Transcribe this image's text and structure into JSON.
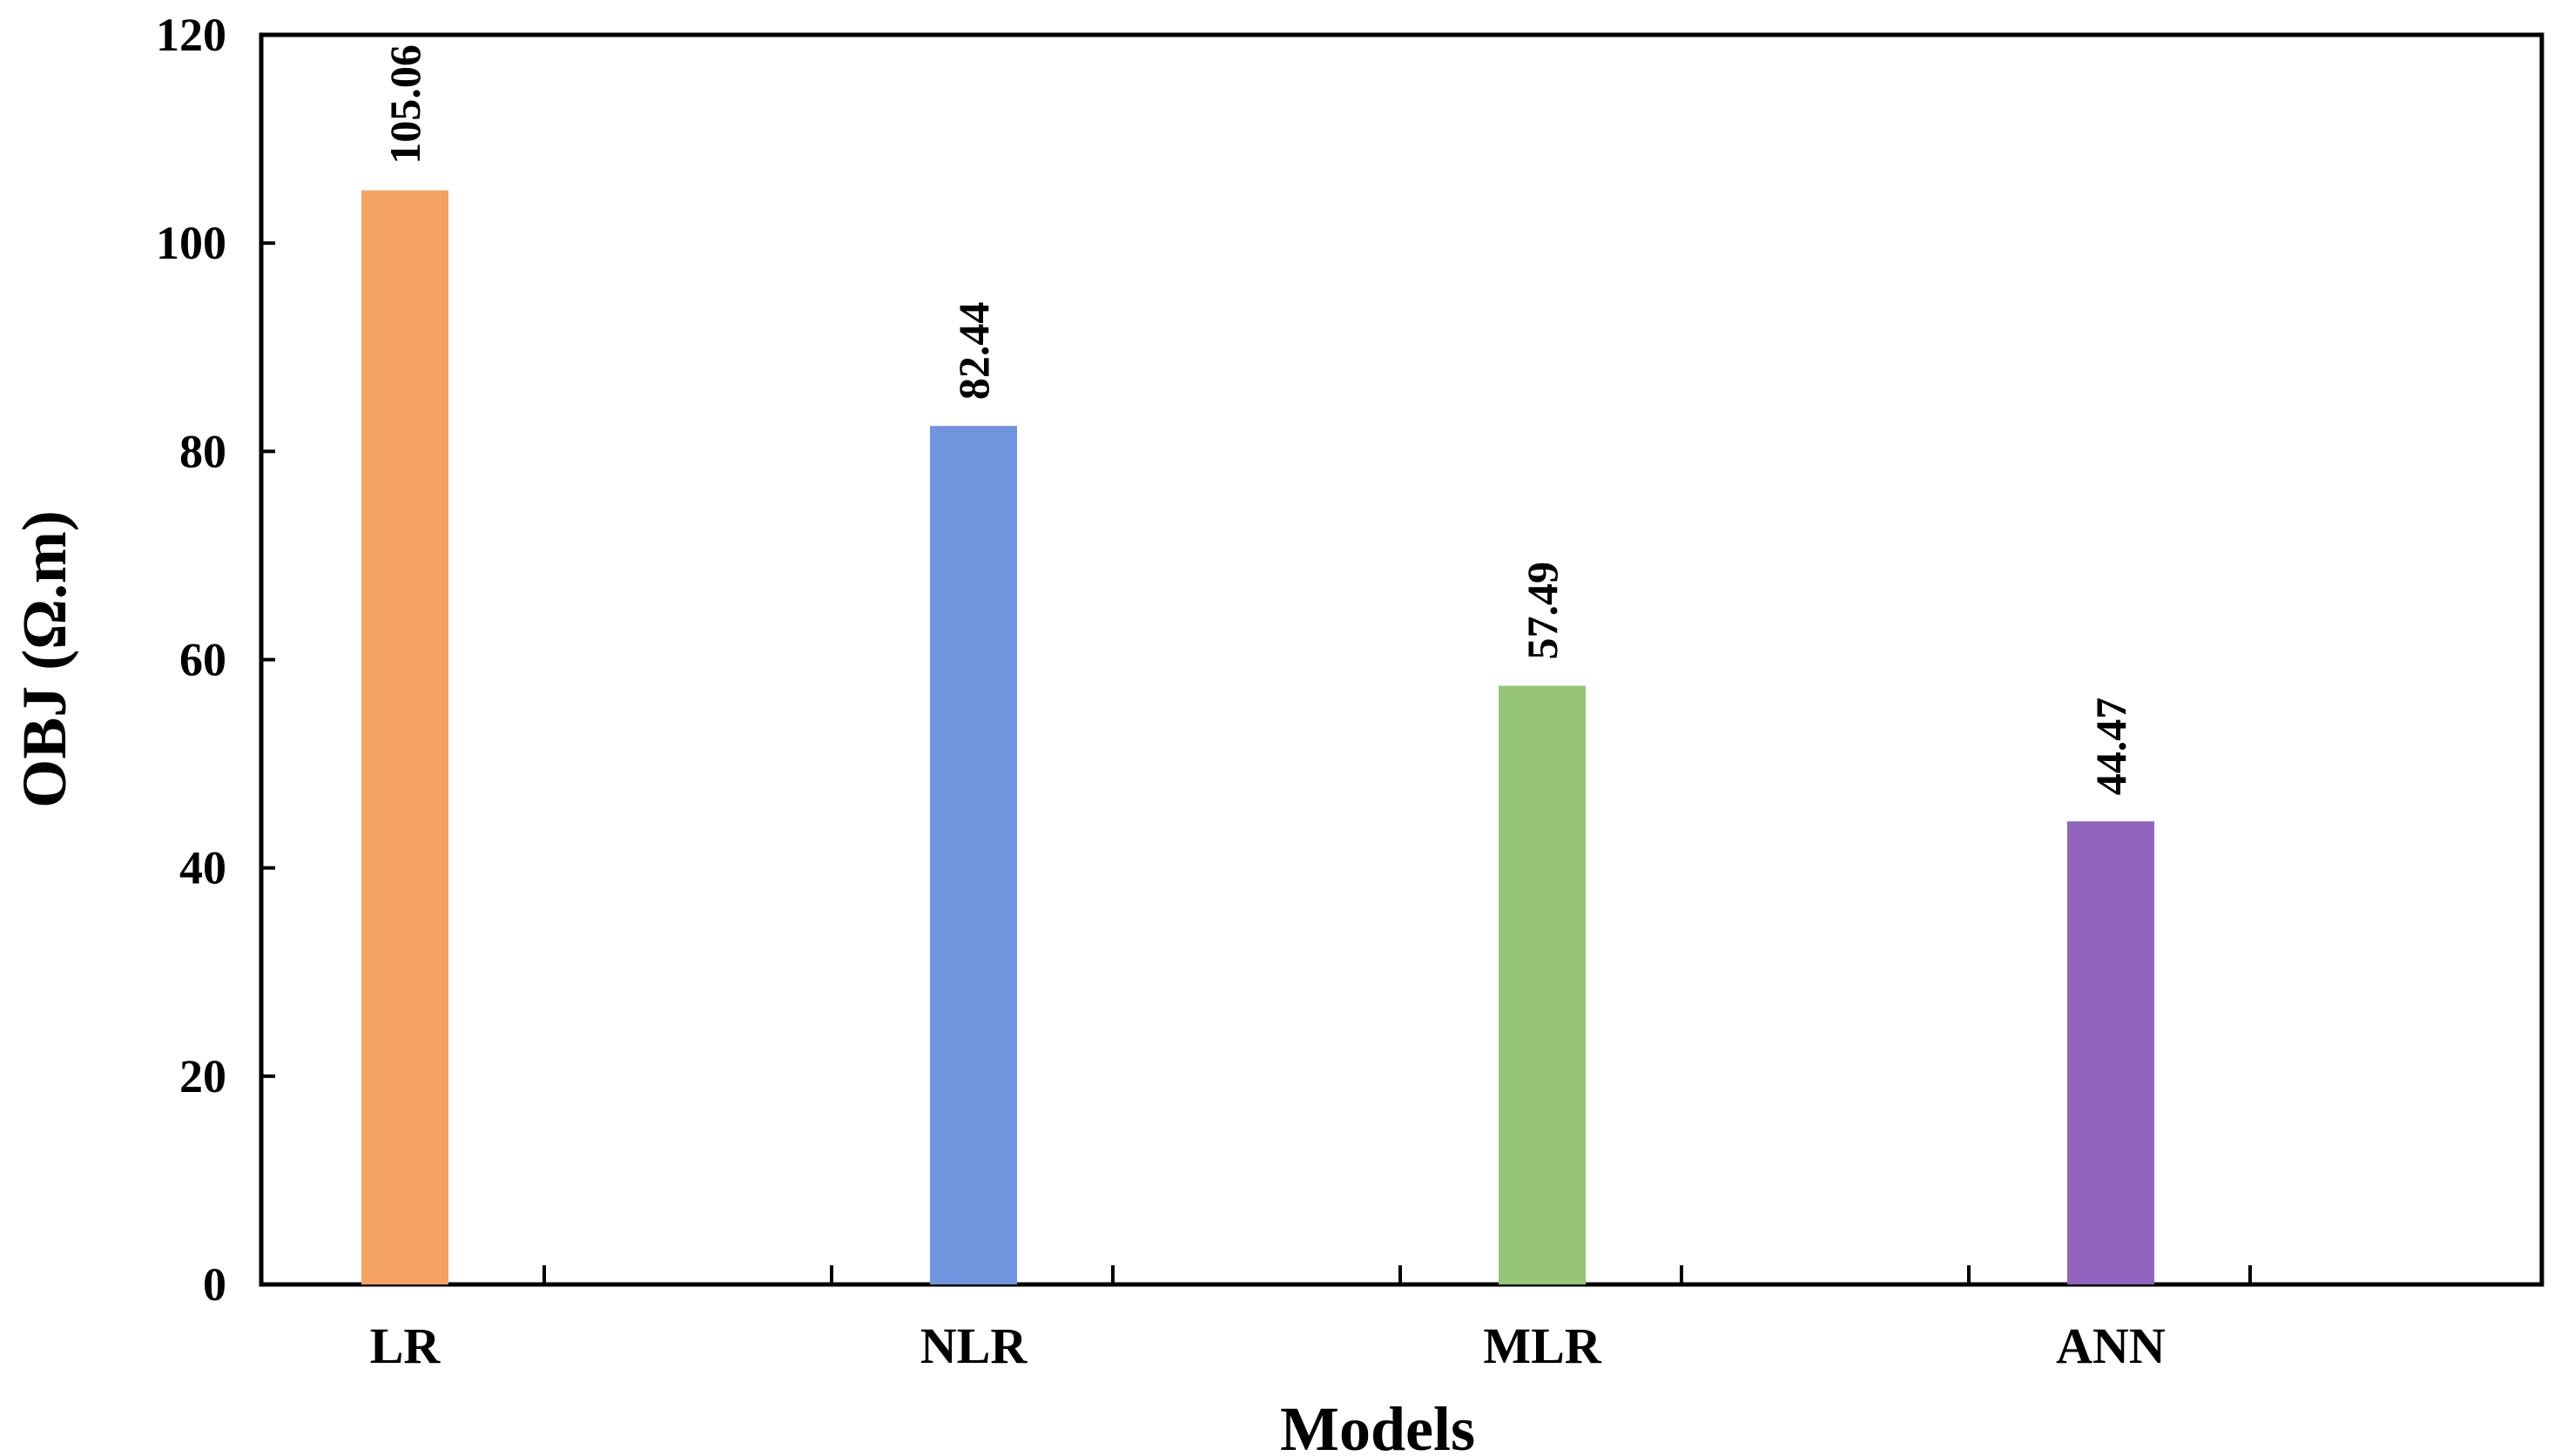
{
  "chart_data": {
    "type": "bar",
    "categories": [
      "LR",
      "NLR",
      "MLR",
      "ANN"
    ],
    "values": [
      105.06,
      82.44,
      57.49,
      44.47
    ],
    "data_labels": [
      "105.06",
      "82.44",
      "57.49",
      "44.47"
    ],
    "colors": [
      "#f4a264",
      "#6f93dc",
      "#95c576",
      "#9164bd"
    ],
    "xlabel": "Models",
    "ylabel": "OBJ (Ω.m)",
    "ylim": [
      0,
      120
    ],
    "yticks": [
      0,
      20,
      40,
      60,
      80,
      100,
      120
    ],
    "grid": false,
    "legend": "none"
  }
}
